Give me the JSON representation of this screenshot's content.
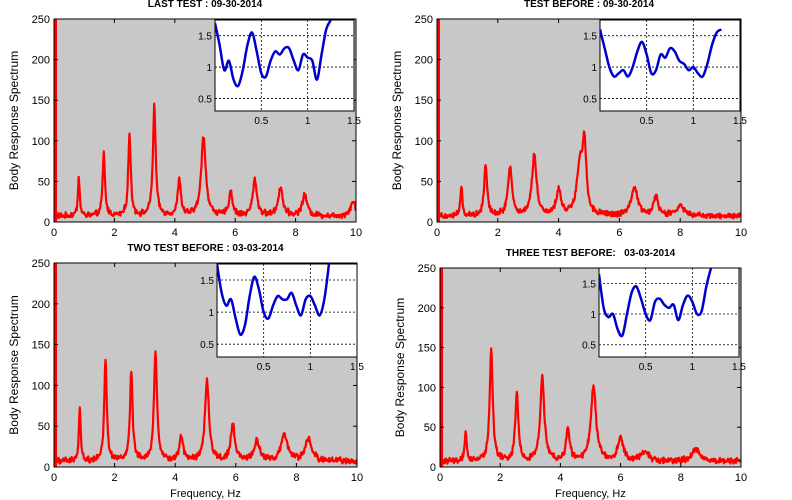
{
  "figure": {
    "background": "#ffffff",
    "axes_background": "#c8c8c8",
    "main_line_color": "#ff0000",
    "inset_line_color": "#0000cc"
  },
  "chart_data": [
    {
      "type": "line",
      "title": "LAST TEST : 09-30-2014",
      "ylabel": "Body Response Spectrum",
      "xlabel": "",
      "xlim": [
        0,
        10
      ],
      "ylim": [
        0,
        250
      ],
      "xticks": [
        0,
        2,
        4,
        6,
        8,
        10
      ],
      "yticks": [
        0,
        50,
        100,
        150,
        200,
        250
      ],
      "grid": false,
      "peaks": [
        {
          "x": 0.82,
          "y": 49,
          "w": 0.035
        },
        {
          "x": 1.65,
          "y": 78,
          "w": 0.045
        },
        {
          "x": 2.5,
          "y": 100,
          "w": 0.05
        },
        {
          "x": 3.32,
          "y": 135,
          "w": 0.055
        },
        {
          "x": 4.15,
          "y": 45,
          "w": 0.06
        },
        {
          "x": 4.95,
          "y": 98,
          "w": 0.09
        },
        {
          "x": 5.85,
          "y": 30,
          "w": 0.07
        },
        {
          "x": 6.65,
          "y": 45,
          "w": 0.08
        },
        {
          "x": 7.5,
          "y": 35,
          "w": 0.09
        },
        {
          "x": 8.3,
          "y": 25,
          "w": 0.1
        },
        {
          "x": 9.9,
          "y": 18,
          "w": 0.1
        }
      ],
      "baseline": 8,
      "inset": {
        "type": "line",
        "xlim": [
          0,
          1.5
        ],
        "ylim": [
          0.3,
          1.75
        ],
        "xticks": [
          0.5,
          1,
          1.5
        ],
        "yticks": [
          0.5,
          1,
          1.5
        ],
        "grid": true,
        "x": [
          0.0,
          0.05,
          0.1,
          0.15,
          0.2,
          0.25,
          0.3,
          0.35,
          0.4,
          0.45,
          0.5,
          0.55,
          0.6,
          0.65,
          0.7,
          0.75,
          0.8,
          0.85,
          0.9,
          0.95,
          1.0,
          1.05,
          1.1,
          1.15,
          1.2,
          1.25
        ],
        "y": [
          1.7,
          1.35,
          0.95,
          1.1,
          0.8,
          0.7,
          0.95,
          1.35,
          1.55,
          1.25,
          0.9,
          0.85,
          1.1,
          1.25,
          1.2,
          1.3,
          1.3,
          1.1,
          0.95,
          1.2,
          1.15,
          1.1,
          0.8,
          1.2,
          1.6,
          1.75
        ]
      }
    },
    {
      "type": "line",
      "title": "TEST BEFORE : 09-30-2014",
      "ylabel": "Body Response Spectrum",
      "xlabel": "",
      "xlim": [
        0,
        10
      ],
      "ylim": [
        0,
        250
      ],
      "xticks": [
        0,
        2,
        4,
        6,
        8,
        10
      ],
      "yticks": [
        0,
        50,
        100,
        150,
        200,
        250
      ],
      "grid": false,
      "peaks": [
        {
          "x": 0.8,
          "y": 35,
          "w": 0.04
        },
        {
          "x": 1.6,
          "y": 63,
          "w": 0.06
        },
        {
          "x": 2.4,
          "y": 60,
          "w": 0.08
        },
        {
          "x": 3.2,
          "y": 75,
          "w": 0.09
        },
        {
          "x": 4.0,
          "y": 30,
          "w": 0.1
        },
        {
          "x": 4.7,
          "y": 60,
          "w": 0.12
        },
        {
          "x": 4.85,
          "y": 80,
          "w": 0.07
        },
        {
          "x": 6.5,
          "y": 35,
          "w": 0.12
        },
        {
          "x": 7.2,
          "y": 22,
          "w": 0.1
        },
        {
          "x": 8.0,
          "y": 12,
          "w": 0.15
        }
      ],
      "baseline": 8,
      "inset": {
        "type": "line",
        "xlim": [
          0,
          1.5
        ],
        "ylim": [
          0.3,
          1.75
        ],
        "xticks": [
          0.5,
          1,
          1.5
        ],
        "yticks": [
          0.5,
          1,
          1.5
        ],
        "grid": true,
        "x": [
          0.0,
          0.05,
          0.1,
          0.15,
          0.2,
          0.25,
          0.3,
          0.35,
          0.4,
          0.45,
          0.5,
          0.55,
          0.6,
          0.65,
          0.7,
          0.75,
          0.8,
          0.85,
          0.9,
          0.95,
          1.0,
          1.05,
          1.1,
          1.15,
          1.2,
          1.25,
          1.3
        ],
        "y": [
          1.6,
          1.3,
          1.0,
          0.85,
          0.9,
          0.95,
          0.85,
          1.0,
          1.25,
          1.4,
          1.2,
          0.9,
          0.95,
          1.2,
          1.15,
          1.3,
          1.25,
          1.1,
          1.05,
          0.95,
          1.0,
          0.9,
          0.85,
          1.05,
          1.35,
          1.55,
          1.6
        ]
      }
    },
    {
      "type": "line",
      "title": "TWO TEST BEFORE : 03-03-2014",
      "ylabel": "Body Response Spectrum",
      "xlabel": "Frequency, Hz",
      "xlim": [
        0,
        10
      ],
      "ylim": [
        0,
        250
      ],
      "xticks": [
        0,
        2,
        4,
        6,
        8,
        10
      ],
      "yticks": [
        0,
        50,
        100,
        150,
        200,
        250
      ],
      "grid": false,
      "peaks": [
        {
          "x": 0.85,
          "y": 65,
          "w": 0.035
        },
        {
          "x": 1.7,
          "y": 125,
          "w": 0.05
        },
        {
          "x": 2.55,
          "y": 110,
          "w": 0.05
        },
        {
          "x": 3.35,
          "y": 135,
          "w": 0.06
        },
        {
          "x": 4.2,
          "y": 30,
          "w": 0.07
        },
        {
          "x": 5.05,
          "y": 98,
          "w": 0.08
        },
        {
          "x": 5.9,
          "y": 45,
          "w": 0.08
        },
        {
          "x": 6.7,
          "y": 25,
          "w": 0.1
        },
        {
          "x": 7.6,
          "y": 32,
          "w": 0.12
        },
        {
          "x": 8.4,
          "y": 28,
          "w": 0.12
        }
      ],
      "baseline": 8,
      "inset": {
        "type": "line",
        "xlim": [
          0,
          1.5
        ],
        "ylim": [
          0.3,
          1.75
        ],
        "xticks": [
          0.5,
          1,
          1.5
        ],
        "yticks": [
          0.5,
          1,
          1.5
        ],
        "grid": true,
        "x": [
          0.0,
          0.05,
          0.1,
          0.15,
          0.2,
          0.25,
          0.3,
          0.35,
          0.4,
          0.45,
          0.5,
          0.55,
          0.6,
          0.65,
          0.7,
          0.75,
          0.8,
          0.85,
          0.9,
          0.95,
          1.0,
          1.05,
          1.1,
          1.15,
          1.2
        ],
        "y": [
          1.75,
          1.3,
          1.1,
          1.2,
          0.9,
          0.65,
          0.8,
          1.25,
          1.55,
          1.35,
          1.0,
          0.9,
          1.1,
          1.25,
          1.2,
          1.2,
          1.3,
          1.1,
          0.95,
          1.2,
          1.25,
          1.1,
          0.95,
          1.2,
          1.75
        ]
      }
    },
    {
      "type": "line",
      "title": "THREE TEST BEFORE:   03-03-2014",
      "ylabel": "Body Response Spectrum",
      "xlabel": "Frequency, Hz",
      "xlim": [
        0,
        10
      ],
      "ylim": [
        0,
        250
      ],
      "xticks": [
        0,
        2,
        4,
        6,
        8,
        10
      ],
      "yticks": [
        0,
        50,
        100,
        150,
        200,
        250
      ],
      "grid": false,
      "peaks": [
        {
          "x": 0.85,
          "y": 35,
          "w": 0.04
        },
        {
          "x": 1.7,
          "y": 140,
          "w": 0.06
        },
        {
          "x": 2.55,
          "y": 85,
          "w": 0.06
        },
        {
          "x": 3.4,
          "y": 105,
          "w": 0.08
        },
        {
          "x": 4.25,
          "y": 40,
          "w": 0.07
        },
        {
          "x": 5.1,
          "y": 95,
          "w": 0.1
        },
        {
          "x": 6.0,
          "y": 30,
          "w": 0.1
        },
        {
          "x": 6.8,
          "y": 12,
          "w": 0.15
        },
        {
          "x": 8.5,
          "y": 15,
          "w": 0.15
        }
      ],
      "baseline": 8,
      "inset": {
        "type": "line",
        "xlim": [
          0,
          1.5
        ],
        "ylim": [
          0.3,
          1.75
        ],
        "xticks": [
          0.5,
          1,
          1.5
        ],
        "yticks": [
          0.5,
          1,
          1.5
        ],
        "grid": true,
        "x": [
          0.0,
          0.05,
          0.1,
          0.15,
          0.2,
          0.25,
          0.3,
          0.35,
          0.4,
          0.45,
          0.5,
          0.55,
          0.6,
          0.65,
          0.7,
          0.75,
          0.8,
          0.85,
          0.9,
          0.95,
          1.0,
          1.05,
          1.1,
          1.15,
          1.2
        ],
        "y": [
          1.65,
          1.1,
          0.95,
          1.0,
          0.75,
          0.65,
          1.0,
          1.35,
          1.45,
          1.25,
          1.0,
          0.9,
          1.2,
          1.25,
          1.15,
          1.1,
          1.15,
          0.9,
          1.15,
          1.3,
          1.2,
          1.0,
          1.05,
          1.45,
          1.75
        ]
      }
    }
  ]
}
